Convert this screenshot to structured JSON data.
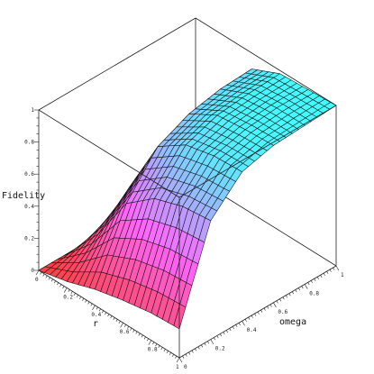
{
  "chart_data": {
    "type": "surface3d",
    "title": "",
    "xlabel": "r",
    "ylabel": "omega",
    "zlabel": "Fidelity",
    "xlim": [
      0,
      1
    ],
    "ylim": [
      0,
      1
    ],
    "zlim": [
      0,
      1
    ],
    "x_ticks": [
      "0",
      "0.2",
      "0.4",
      "0.6",
      "0.8",
      "1"
    ],
    "y_ticks": [
      "0",
      "0.2",
      "0.4",
      "0.6",
      "0.8",
      "1"
    ],
    "z_ticks": [
      "0",
      "0.2",
      "0.4",
      "0.6",
      "0.8",
      "1"
    ],
    "grid": false,
    "r": [
      0,
      0.2,
      0.4,
      0.6,
      0.8,
      1.0
    ],
    "omega": [
      0,
      0.2,
      0.4,
      0.6,
      0.8,
      1.0
    ],
    "fidelity_rows_by_omega": [
      [
        0.0,
        0.04,
        0.1,
        0.14,
        0.17,
        0.18
      ],
      [
        0.0,
        0.22,
        0.52,
        0.66,
        0.72,
        0.74
      ],
      [
        0.0,
        0.4,
        0.76,
        0.88,
        0.92,
        0.93
      ],
      [
        0.0,
        0.48,
        0.85,
        0.95,
        0.97,
        0.98
      ],
      [
        0.0,
        0.52,
        0.89,
        0.97,
        0.99,
        0.99
      ],
      [
        0.0,
        0.54,
        0.9,
        0.98,
        0.99,
        1.0
      ]
    ],
    "colormap": [
      "#ff4040",
      "#ff66ff",
      "#40ffff"
    ]
  }
}
